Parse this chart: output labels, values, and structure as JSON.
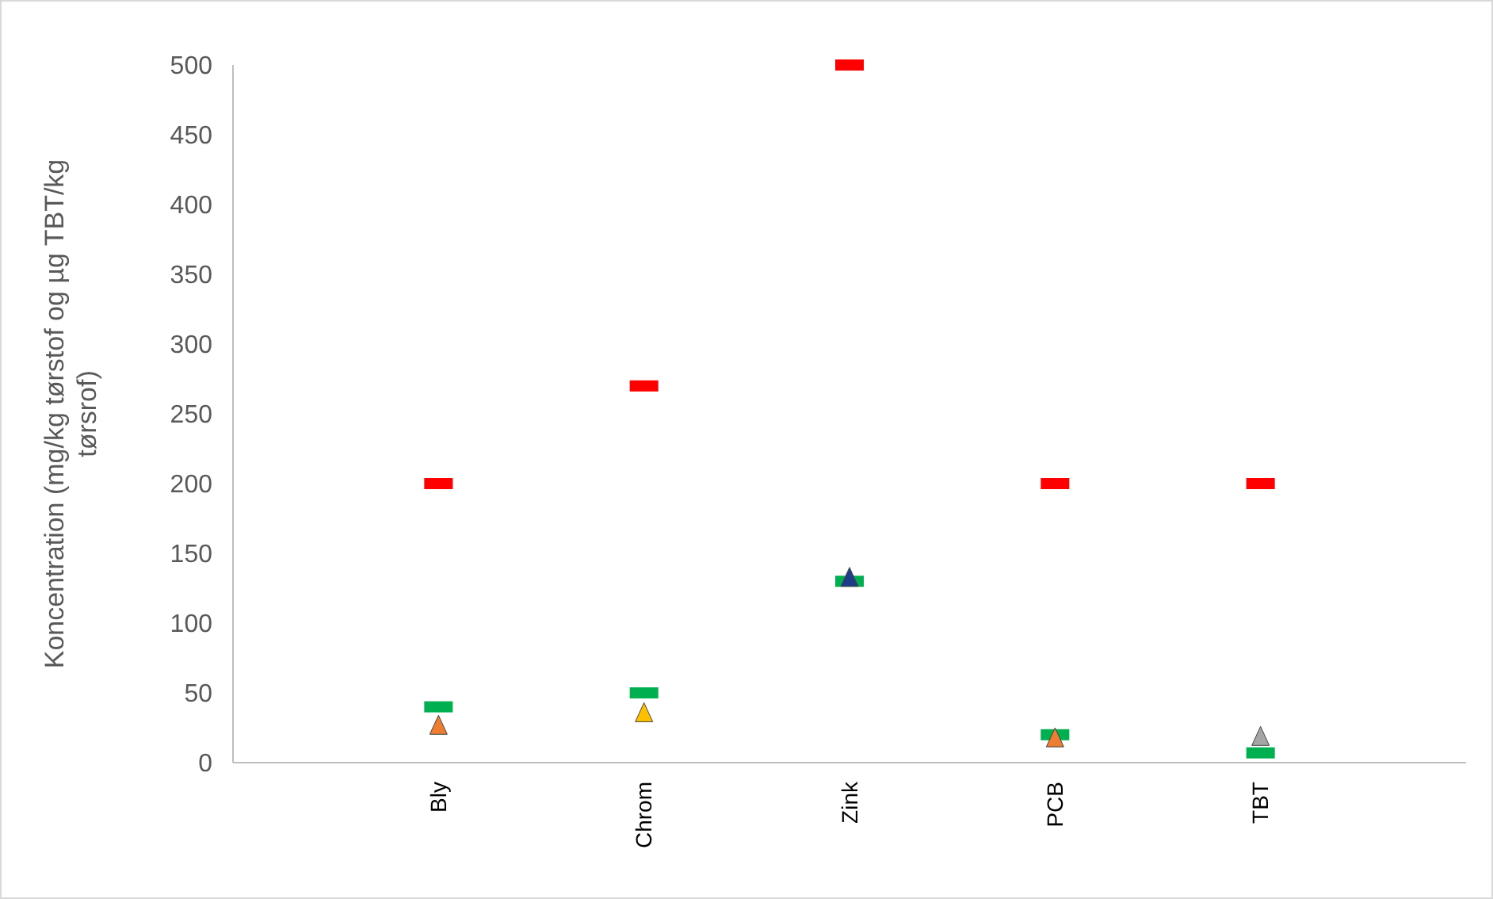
{
  "chart_data": {
    "type": "scatter",
    "ylabel": "Koncentration (mg/kg tørstof og µg TBT/kg tørsrof)",
    "categories": [
      "Bly",
      "Chrom",
      "Zink",
      "PCB",
      "TBT"
    ],
    "ylim": [
      0,
      500
    ],
    "yticks": [
      0,
      50,
      100,
      150,
      200,
      250,
      300,
      350,
      400,
      450,
      500
    ],
    "series": [
      {
        "color": "#ff0000",
        "marker": "square",
        "values": [
          200,
          270,
          500,
          200,
          200
        ]
      },
      {
        "color": "#00b050",
        "marker": "square",
        "values": [
          40,
          50,
          130,
          20,
          7
        ]
      },
      {
        "colors": [
          "#ed7d31",
          "#ffc000",
          "#1f3c88",
          "#ed7d31",
          "#a5a5a5"
        ],
        "marker": "triangle",
        "values": [
          26,
          35,
          132,
          17,
          18
        ]
      }
    ]
  }
}
